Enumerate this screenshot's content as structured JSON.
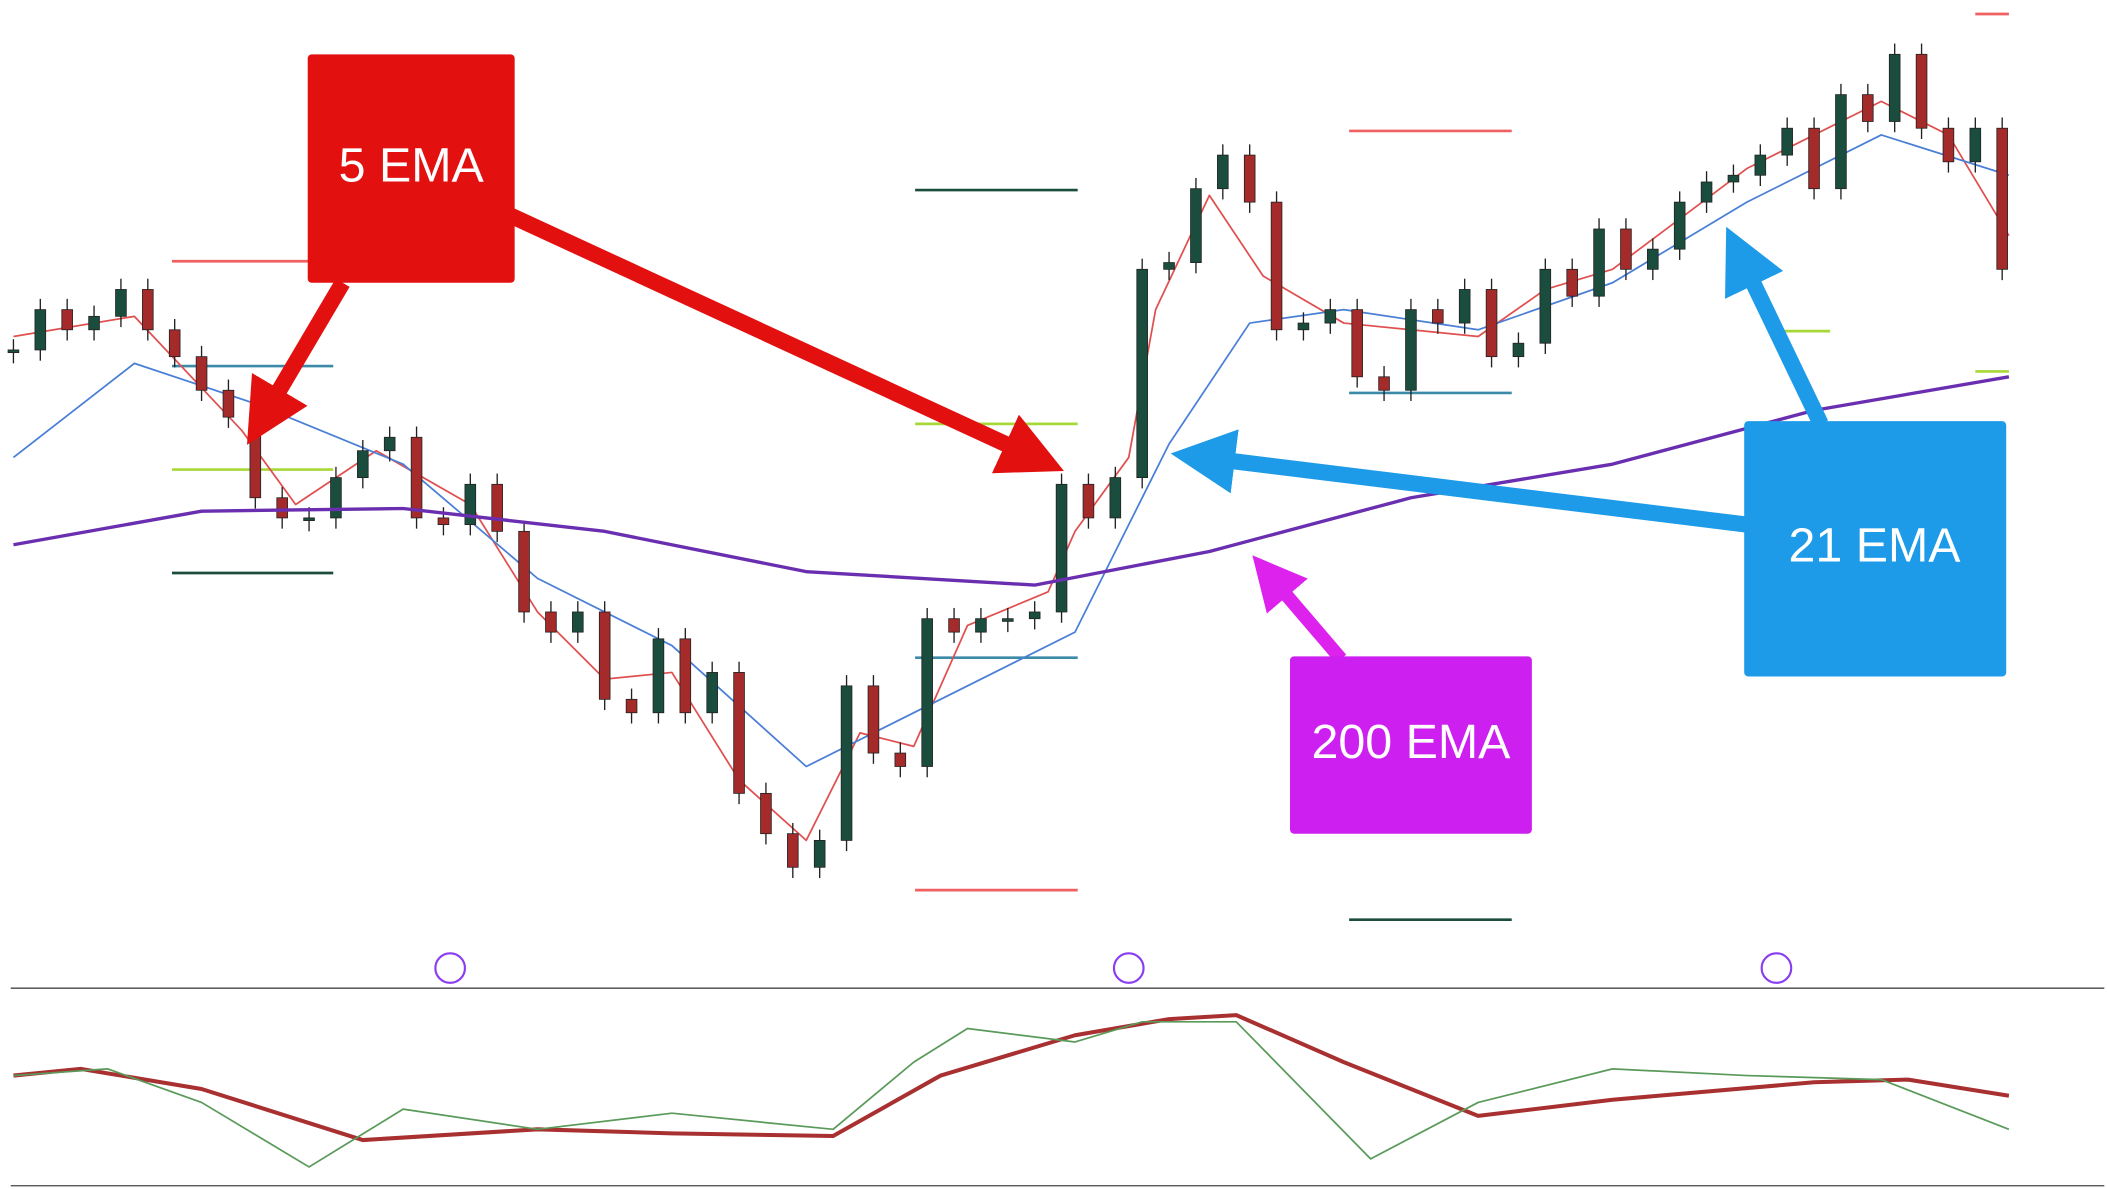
{
  "chart_data": {
    "type": "candlestick",
    "annotations": [
      "5 EMA",
      "21 EMA",
      "200 EMA"
    ],
    "xlim": [
      0,
      1568
    ],
    "ylim": [
      0,
      700
    ],
    "y2lim": [
      0,
      145
    ],
    "x": [
      10,
      30,
      50,
      70,
      90,
      110,
      130,
      150,
      170,
      190,
      210,
      230,
      250,
      270,
      290,
      310,
      330,
      350,
      370,
      390,
      410,
      430,
      450,
      470,
      490,
      510,
      530,
      550,
      570,
      590,
      610,
      630,
      650,
      670,
      690,
      710,
      730,
      750,
      770,
      790,
      810,
      830,
      850,
      870,
      890,
      910,
      930,
      950,
      970,
      990,
      1010,
      1030,
      1050,
      1070,
      1090,
      1110,
      1130,
      1150,
      1170,
      1190,
      1210,
      1230,
      1250,
      1270,
      1290,
      1310,
      1330,
      1350,
      1370,
      1390,
      1410,
      1430,
      1450,
      1470,
      1490
    ],
    "values": [
      440,
      470,
      455,
      465,
      485,
      455,
      435,
      410,
      390,
      330,
      315,
      315,
      345,
      365,
      375,
      315,
      310,
      340,
      305,
      245,
      230,
      245,
      180,
      170,
      225,
      170,
      200,
      110,
      80,
      55,
      75,
      190,
      140,
      130,
      240,
      230,
      240,
      240,
      245,
      340,
      315,
      345,
      500,
      505,
      560,
      585,
      550,
      455,
      460,
      470,
      420,
      410,
      470,
      460,
      485,
      435,
      445,
      500,
      480,
      530,
      500,
      515,
      550,
      565,
      570,
      585,
      605,
      560,
      630,
      610,
      660,
      605,
      580,
      605,
      500
    ],
    "up_color": "#1b4d3e",
    "down_color": "#a52a2a",
    "series": [
      {
        "color": "#e05050",
        "width": 1.3,
        "x": [
          10,
          100,
          180,
          220,
          280,
          350,
          400,
          450,
          500,
          550,
          600,
          640,
          680,
          720,
          780,
          800,
          840,
          860,
          900,
          940,
          1000,
          1050,
          1100,
          1150,
          1200,
          1300,
          1400,
          1450,
          1495
        ],
        "values": [
          450,
          465,
          380,
          325,
          365,
          325,
          245,
          195,
          200,
          120,
          75,
          155,
          145,
          235,
          260,
          305,
          360,
          470,
          555,
          495,
          460,
          455,
          450,
          485,
          500,
          575,
          625,
          600,
          525
        ]
      },
      {
        "color": "#4a7fd6",
        "width": 1.3,
        "x": [
          10,
          100,
          190,
          300,
          400,
          500,
          600,
          700,
          800,
          870,
          930,
          1000,
          1100,
          1200,
          1300,
          1400,
          1495
        ],
        "values": [
          360,
          430,
          400,
          355,
          270,
          220,
          130,
          180,
          230,
          370,
          460,
          470,
          455,
          490,
          550,
          600,
          570
        ]
      },
      {
        "color": "#6a2fb0",
        "width": 2.5,
        "x": [
          10,
          150,
          300,
          450,
          600,
          770,
          900,
          1050,
          1200,
          1350,
          1495
        ],
        "values": [
          295,
          320,
          322,
          305,
          275,
          265,
          290,
          330,
          355,
          395,
          420
        ]
      },
      {
        "color": "#a83030",
        "width": 3,
        "axis": "y2",
        "x": [
          10,
          60,
          150,
          270,
          400,
          500,
          620,
          700,
          800,
          870,
          920,
          1000,
          1100,
          1200,
          1350,
          1420,
          1495
        ],
        "values": [
          80,
          85,
          70,
          32,
          40,
          37,
          35,
          80,
          110,
          122,
          125,
          90,
          50,
          62,
          75,
          77,
          65
        ]
      },
      {
        "color": "#5a9a5a",
        "width": 1.3,
        "axis": "y2",
        "x": [
          10,
          80,
          150,
          230,
          300,
          400,
          500,
          620,
          680,
          720,
          800,
          850,
          920,
          1020,
          1100,
          1200,
          1300,
          1400,
          1495
        ],
        "values": [
          80,
          85,
          60,
          12,
          55,
          40,
          52,
          40,
          90,
          115,
          105,
          120,
          120,
          18,
          60,
          85,
          80,
          77,
          40
        ]
      }
    ]
  }
}
